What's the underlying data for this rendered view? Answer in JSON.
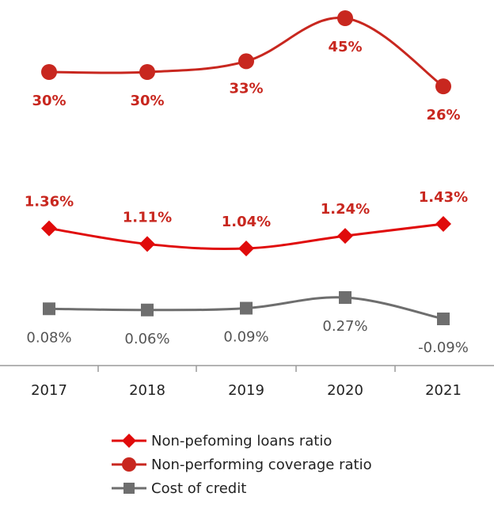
{
  "chart_data": {
    "type": "line",
    "categories": [
      "2017",
      "2018",
      "2019",
      "2020",
      "2021"
    ],
    "series": [
      {
        "name": "Non-pefoming loans ratio",
        "marker": "diamond",
        "color": "#e00b0b",
        "values": [
          1.36,
          1.11,
          1.04,
          1.24,
          1.43
        ],
        "labels": [
          "1.36%",
          "1.11%",
          "1.04%",
          "1.24%",
          "1.43%"
        ]
      },
      {
        "name": "Non-performing coverage ratio",
        "marker": "circle",
        "color": "#c8271f",
        "values": [
          30,
          30,
          33,
          45,
          26
        ],
        "labels": [
          "30%",
          "30%",
          "33%",
          "45%",
          "26%"
        ]
      },
      {
        "name": "Cost of credit",
        "marker": "square",
        "color": "#6e6e6e",
        "values": [
          0.08,
          0.06,
          0.09,
          0.27,
          -0.09
        ],
        "labels": [
          "0.08%",
          "0.06%",
          "0.09%",
          "0.27%",
          "-0.09%"
        ]
      }
    ],
    "legend_position": "bottom",
    "grid": false
  }
}
